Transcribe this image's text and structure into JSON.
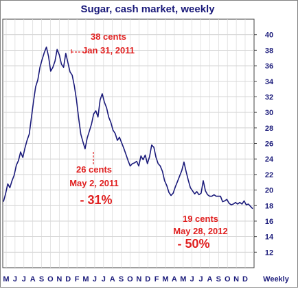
{
  "chart_data": {
    "type": "line",
    "title": "Sugar, cash market, weekly",
    "xlabel": "Weekly",
    "ylabel": "",
    "ylim": [
      10,
      42
    ],
    "y_ticks": [
      12,
      14,
      16,
      18,
      20,
      22,
      24,
      26,
      28,
      30,
      32,
      34,
      36,
      38,
      40
    ],
    "x_tick_labels": [
      "M",
      "J",
      "J",
      "A",
      "S",
      "O",
      "N",
      "D",
      "F",
      "M",
      "J",
      "J",
      "A",
      "S",
      "O",
      "N",
      "D",
      "F",
      "M",
      "A",
      "M",
      "J",
      "J",
      "A",
      "S",
      "O",
      "N",
      "D"
    ],
    "grid": true,
    "series": [
      {
        "name": "",
        "color": "#1a1a7a",
        "values": [
          18.5,
          19.5,
          20.8,
          20.3,
          21.2,
          21.9,
          23.2,
          23.8,
          24.9,
          24.2,
          25.4,
          26.4,
          27.2,
          29.3,
          31.4,
          33.3,
          34.2,
          35.8,
          36.8,
          37.7,
          38.4,
          37.2,
          35.3,
          35.8,
          36.6,
          38.1,
          37.4,
          36.2,
          35.8,
          37.6,
          36.4,
          35.2,
          34.8,
          33.4,
          31.6,
          29.3,
          27.2,
          26.2,
          25.3,
          26.7,
          27.6,
          28.5,
          29.8,
          30.2,
          29.4,
          31.6,
          32.4,
          31.3,
          30.6,
          29.4,
          28.7,
          27.7,
          27.3,
          26.4,
          26.8,
          26.1,
          25.4,
          24.6,
          23.8,
          23.1,
          23.4,
          23.5,
          23.7,
          23.1,
          24.4,
          23.9,
          24.5,
          23.4,
          24.3,
          25.8,
          25.5,
          24.2,
          23.4,
          23.1,
          22.4,
          21.2,
          20.6,
          19.7,
          19.3,
          19.6,
          20.4,
          21.1,
          21.8,
          22.5,
          23.6,
          22.4,
          21.3,
          20.3,
          19.9,
          19.5,
          19.8,
          19.4,
          19.6,
          21.2,
          19.9,
          19.4,
          19.2,
          19.2,
          19.4,
          19.2,
          19.2,
          19.2,
          18.5,
          18.6,
          18.8,
          18.3,
          18.1,
          18.2,
          18.4,
          18.2,
          18.4,
          18.2,
          18.6,
          18.1,
          18.2,
          17.9,
          17.6
        ]
      }
    ],
    "annotations": [
      {
        "lines": [
          "38 cents",
          "Jan 31, 2011"
        ],
        "color": "#e02020"
      },
      {
        "lines": [
          "26 cents",
          "May 2, 2011"
        ],
        "color": "#e02020"
      },
      {
        "lines": [
          "- 31%"
        ],
        "color": "#e02020"
      },
      {
        "lines": [
          "19 cents",
          "May 28, 2012"
        ],
        "color": "#e02020"
      },
      {
        "lines": [
          "- 50%"
        ],
        "color": "#e02020"
      }
    ]
  }
}
